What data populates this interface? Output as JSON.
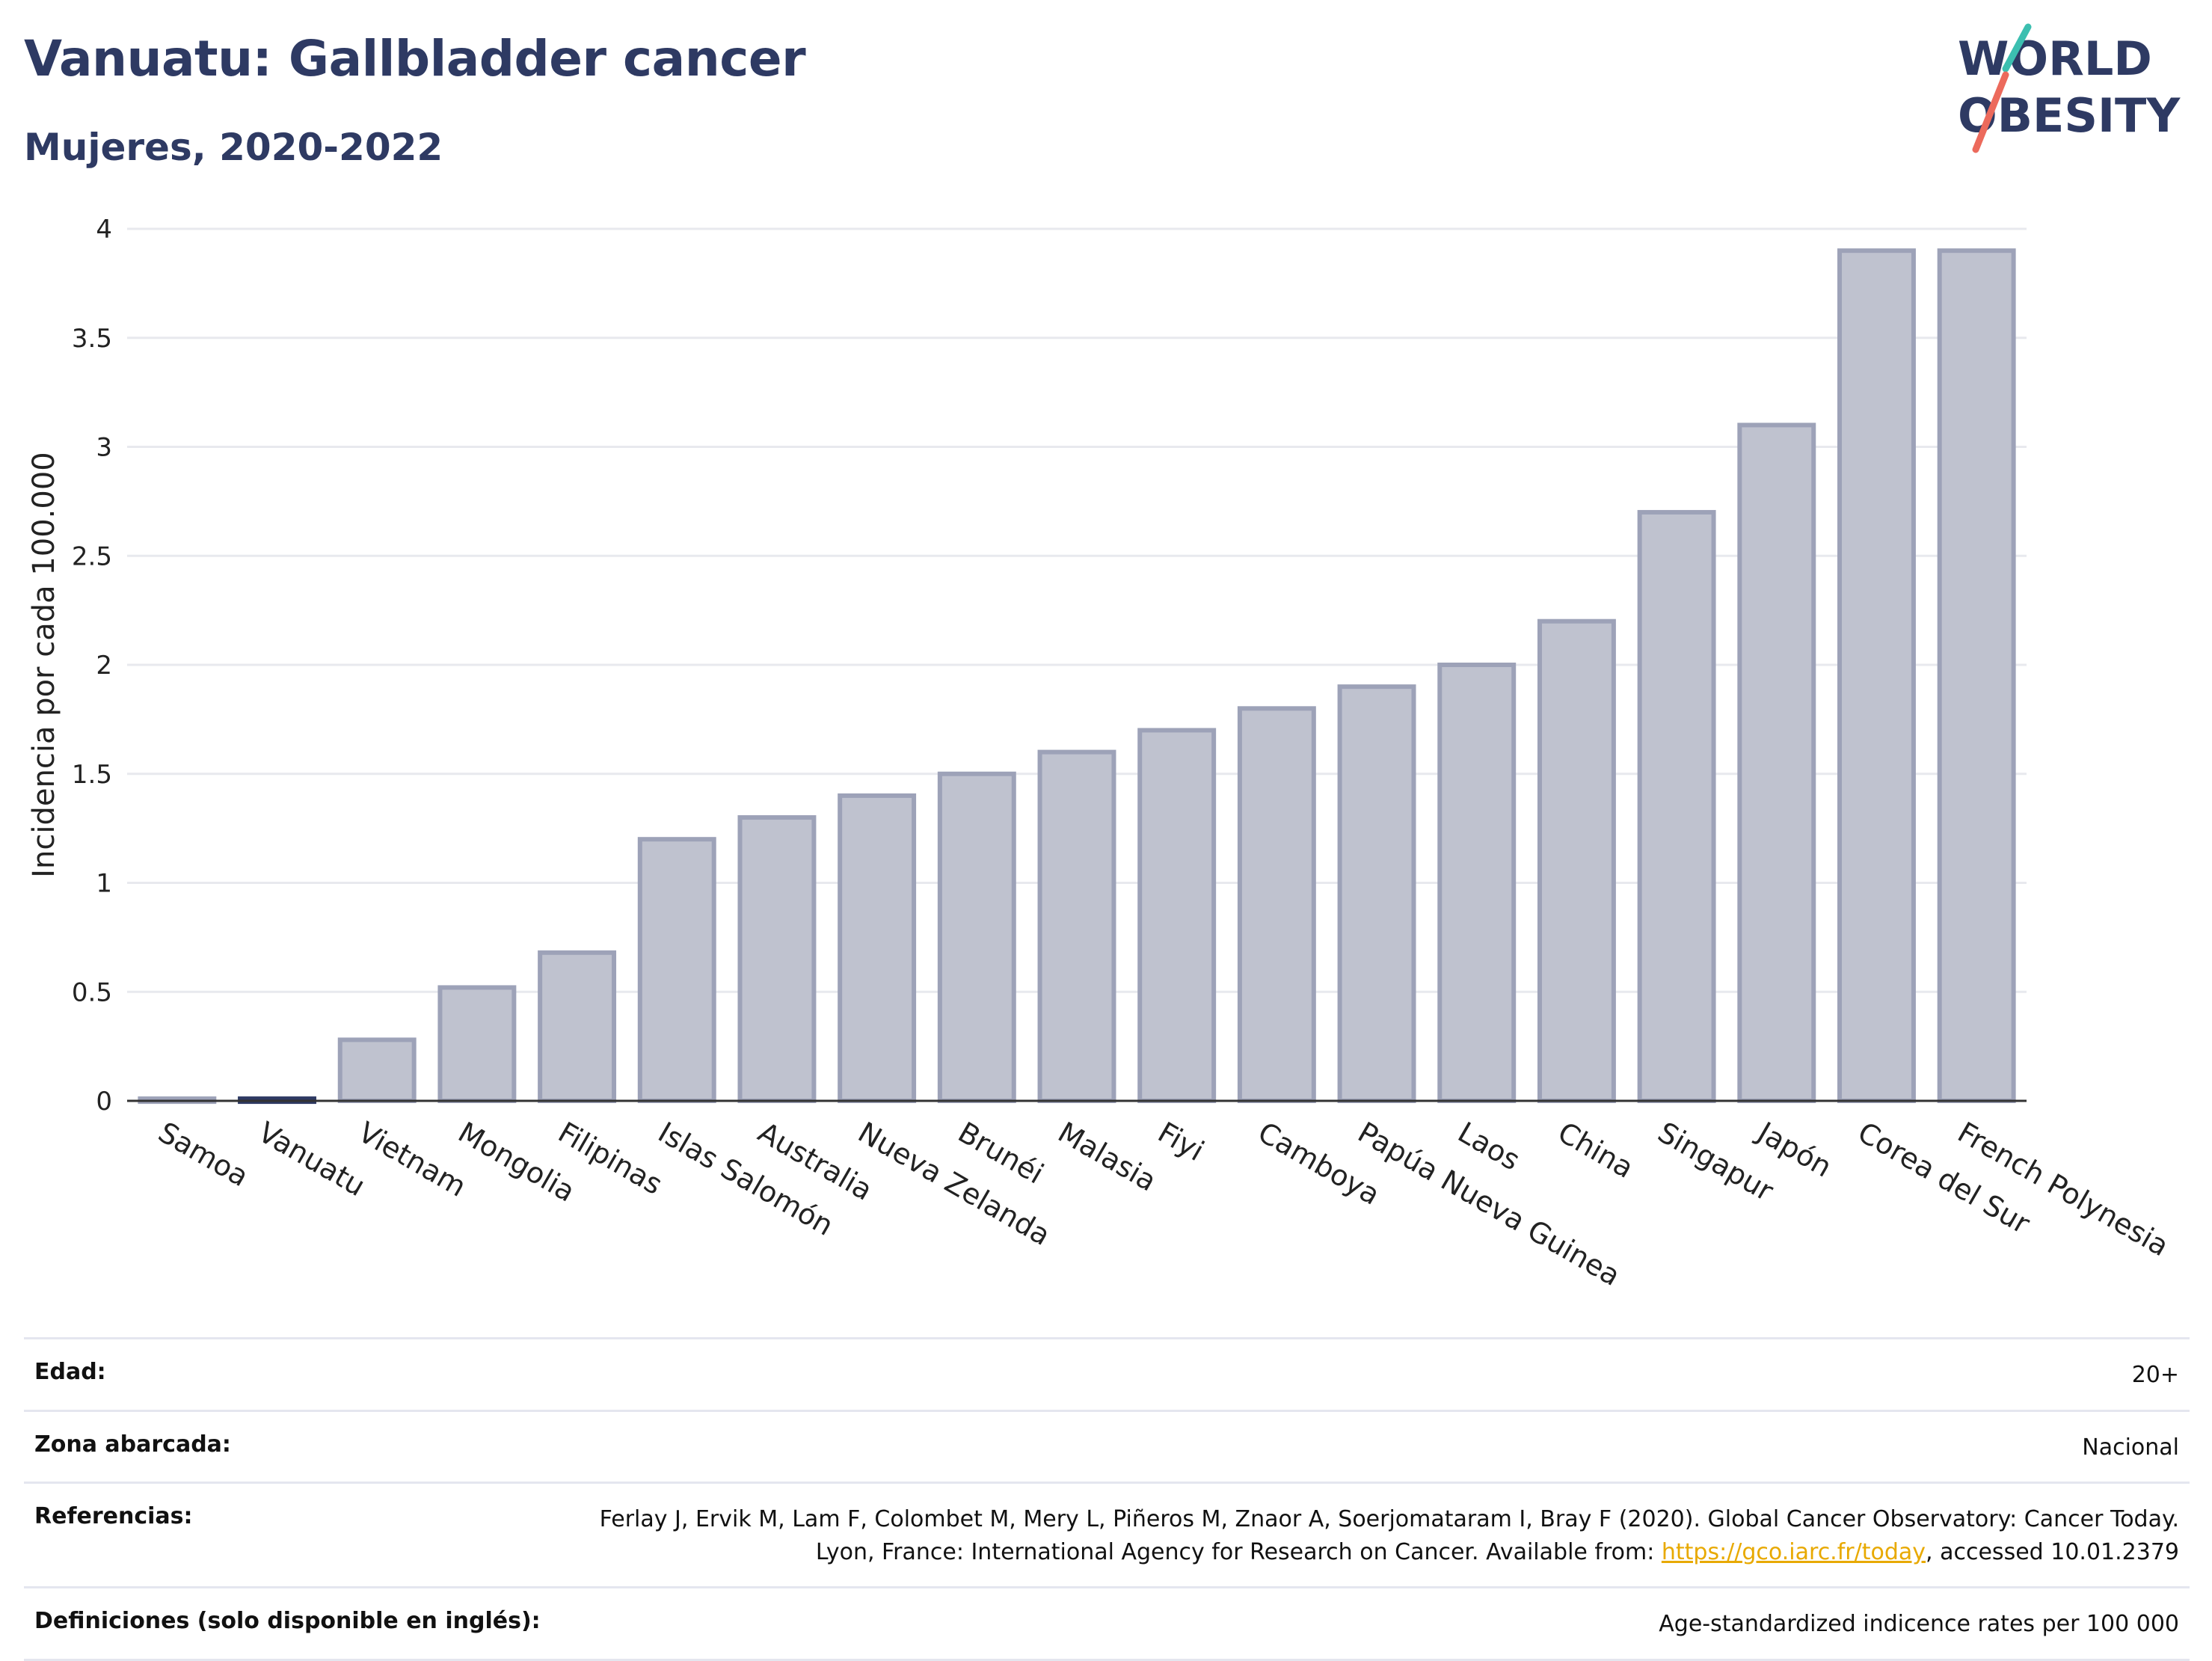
{
  "header": {
    "title": "Vanuatu: Gallbladder cancer",
    "subtitle": "Mujeres, 2020-2022"
  },
  "logo": {
    "line1": "WORLD",
    "line2": "OBESITY",
    "accent_teal": "#3cbfb0",
    "accent_coral": "#ec6a5c",
    "text_color": "#2e3a63"
  },
  "colors": {
    "bar_fill": "#bfc2cf",
    "bar_stroke": "#9da2b8",
    "highlight_fill": "#2e3a63",
    "grid": "#e8e9ee"
  },
  "chart_data": {
    "type": "bar",
    "ylabel": "Incidencia por cada 100.000",
    "ylim": [
      0,
      4
    ],
    "yticks": [
      0,
      0.5,
      1,
      1.5,
      2,
      2.5,
      3,
      3.5,
      4
    ],
    "ytick_labels": [
      "0",
      "0.5",
      "1",
      "1.5",
      "2",
      "2.5",
      "3",
      "3.5",
      "4"
    ],
    "grid": true,
    "highlight": "Vanuatu",
    "categories": [
      "Samoa",
      "Vanuatu",
      "Vietnam",
      "Mongolia",
      "Filipinas",
      "Islas Salomón",
      "Australia",
      "Nueva Zelanda",
      "Brunéi",
      "Malasia",
      "Fiyi",
      "Camboya",
      "Papúa Nueva Guinea",
      "Laos",
      "China",
      "Singapur",
      "Japón",
      "Corea del Sur",
      "French Polynesia"
    ],
    "values": [
      0.01,
      0.01,
      0.28,
      0.52,
      0.68,
      1.2,
      1.3,
      1.4,
      1.5,
      1.6,
      1.7,
      1.8,
      1.9,
      2.0,
      2.2,
      2.7,
      3.1,
      3.9,
      3.9
    ]
  },
  "info_table": [
    {
      "label": "Edad:",
      "value": "20+"
    },
    {
      "label": "Zona abarcada:",
      "value": "Nacional"
    },
    {
      "label": "Referencias:",
      "value_before": "Ferlay J, Ervik M, Lam F, Colombet M, Mery L, Piñeros M, Znaor A, Soerjomataram I, Bray F (2020). Global Cancer Observatory: Cancer Today. Lyon, France: International Agency for Research on Cancer. Available from: ",
      "link": "https://gco.iarc.fr/today",
      "value_after": ", accessed 10.01.2379"
    },
    {
      "label": "Definiciones (solo disponible en inglés):",
      "value": "Age-standardized indicence rates per 100 000"
    }
  ]
}
